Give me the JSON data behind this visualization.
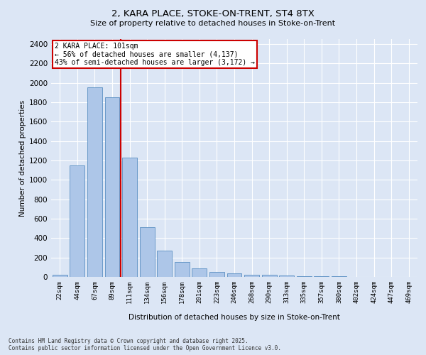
{
  "title_line1": "2, KARA PLACE, STOKE-ON-TRENT, ST4 8TX",
  "title_line2": "Size of property relative to detached houses in Stoke-on-Trent",
  "xlabel": "Distribution of detached houses by size in Stoke-on-Trent",
  "ylabel": "Number of detached properties",
  "categories": [
    "22sqm",
    "44sqm",
    "67sqm",
    "89sqm",
    "111sqm",
    "134sqm",
    "156sqm",
    "178sqm",
    "201sqm",
    "223sqm",
    "246sqm",
    "268sqm",
    "290sqm",
    "313sqm",
    "335sqm",
    "357sqm",
    "380sqm",
    "402sqm",
    "424sqm",
    "447sqm",
    "469sqm"
  ],
  "values": [
    25,
    1150,
    1950,
    1850,
    1230,
    515,
    270,
    155,
    90,
    50,
    40,
    25,
    20,
    15,
    8,
    5,
    5,
    3,
    2,
    2,
    2
  ],
  "bar_color": "#adc6e8",
  "bar_edge_color": "#5a8fc2",
  "background_color": "#dce6f5",
  "grid_color": "#ffffff",
  "red_line_x": 3.5,
  "annotation_text": "2 KARA PLACE: 101sqm\n← 56% of detached houses are smaller (4,137)\n43% of semi-detached houses are larger (3,172) →",
  "annotation_box_color": "#ffffff",
  "annotation_border_color": "#cc0000",
  "ylim": [
    0,
    2450
  ],
  "yticks": [
    0,
    200,
    400,
    600,
    800,
    1000,
    1200,
    1400,
    1600,
    1800,
    2000,
    2200,
    2400
  ],
  "footer_line1": "Contains HM Land Registry data © Crown copyright and database right 2025.",
  "footer_line2": "Contains public sector information licensed under the Open Government Licence v3.0."
}
